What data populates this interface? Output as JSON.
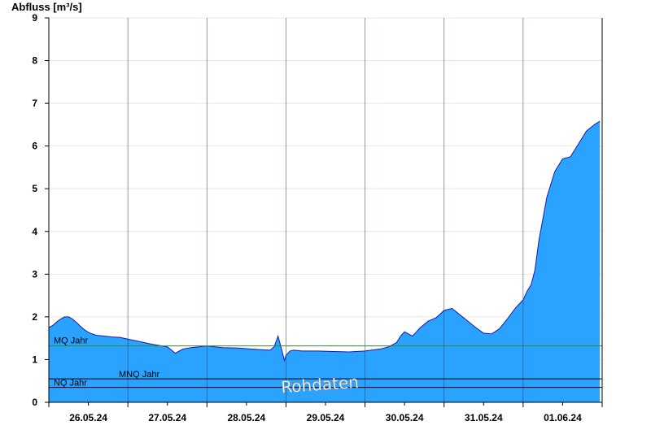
{
  "chart_data": {
    "type": "area",
    "title": "",
    "ylabel": "Abfluss [m³/s]",
    "xlabel": "",
    "ylim": [
      0,
      9
    ],
    "xlim": [
      0,
      7
    ],
    "yticks": [
      "0",
      "1",
      "2",
      "3",
      "4",
      "5",
      "6",
      "7",
      "8",
      "9"
    ],
    "xtick_labels": [
      "26.05.24",
      "27.05.24",
      "28.05.24",
      "29.05.24",
      "30.05.24",
      "31.05.24",
      "01.06.24"
    ],
    "grid": true,
    "fill_color": "#2aa2ff",
    "line_color": "#1a1aaa",
    "series": [
      {
        "values_unit": "m³/s",
        "x": [
          0,
          0.05,
          0.1,
          0.15,
          0.2,
          0.25,
          0.3,
          0.35,
          0.4,
          0.45,
          0.5,
          0.55,
          0.6,
          0.7,
          0.8,
          0.9,
          1.0,
          1.1,
          1.2,
          1.3,
          1.4,
          1.5,
          1.6,
          1.7,
          1.8,
          1.9,
          2.0,
          2.1,
          2.2,
          2.4,
          2.6,
          2.8,
          2.85,
          2.9,
          2.95,
          2.98,
          3.0,
          3.05,
          3.1,
          3.2,
          3.4,
          3.6,
          3.8,
          4.0,
          4.2,
          4.3,
          4.4,
          4.45,
          4.5,
          4.55,
          4.6,
          4.7,
          4.8,
          4.9,
          5.0,
          5.1,
          5.2,
          5.3,
          5.4,
          5.5,
          5.6,
          5.7,
          5.8,
          5.9,
          6.0,
          6.05,
          6.1,
          6.15,
          6.2,
          6.3,
          6.4,
          6.5,
          6.6,
          6.7,
          6.8,
          6.9,
          6.97
        ],
        "y": [
          1.75,
          1.8,
          1.88,
          1.95,
          2.0,
          2.0,
          1.95,
          1.87,
          1.78,
          1.7,
          1.64,
          1.6,
          1.57,
          1.55,
          1.53,
          1.52,
          1.48,
          1.44,
          1.4,
          1.36,
          1.33,
          1.3,
          1.15,
          1.25,
          1.28,
          1.3,
          1.32,
          1.3,
          1.28,
          1.27,
          1.24,
          1.22,
          1.3,
          1.55,
          1.2,
          0.98,
          1.1,
          1.2,
          1.22,
          1.2,
          1.2,
          1.19,
          1.18,
          1.2,
          1.25,
          1.3,
          1.4,
          1.55,
          1.65,
          1.6,
          1.55,
          1.75,
          1.9,
          1.98,
          2.15,
          2.2,
          2.05,
          1.9,
          1.75,
          1.62,
          1.6,
          1.72,
          1.95,
          2.2,
          2.4,
          2.6,
          2.75,
          3.1,
          3.8,
          4.8,
          5.4,
          5.7,
          5.75,
          6.05,
          6.35,
          6.5,
          6.58
        ]
      }
    ],
    "reference_lines": [
      {
        "label": "MQ Jahr",
        "y": 1.32,
        "color": "#2e8b2e"
      },
      {
        "label": "MNQ Jahr",
        "y": 0.55,
        "color": "#000000"
      },
      {
        "label": "NQ Jahr",
        "y": 0.35,
        "color": "#000000"
      }
    ],
    "annotation": "Rohdaten"
  }
}
